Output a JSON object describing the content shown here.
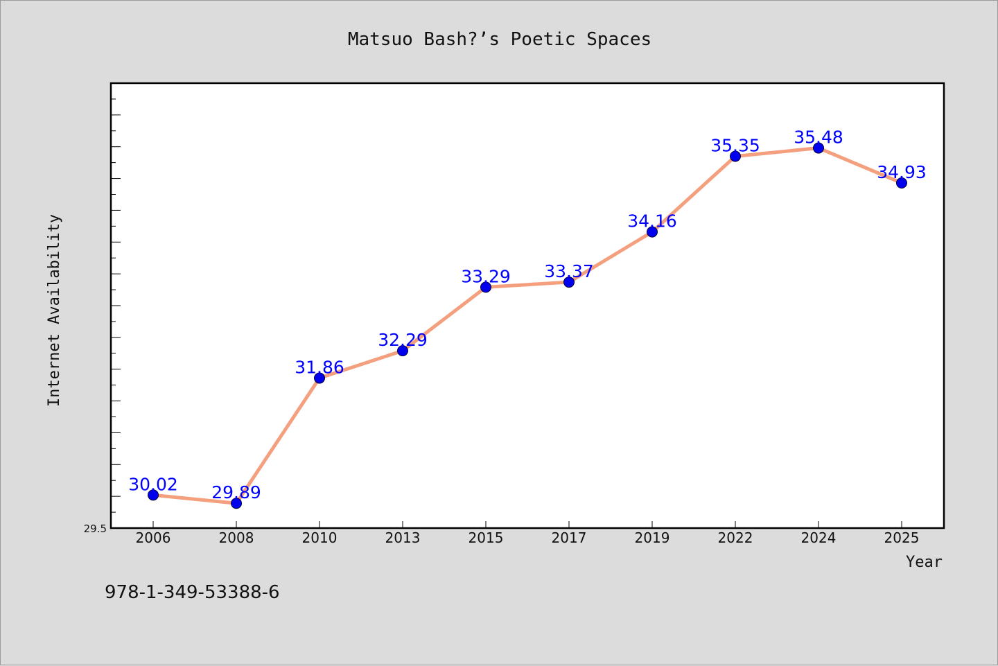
{
  "chart_data": {
    "type": "line",
    "title": "Matsuo Bash?’s Poetic Spaces",
    "xlabel": "Year",
    "ylabel": "Internet Availability",
    "categories": [
      "2006",
      "2008",
      "2010",
      "2013",
      "2015",
      "2017",
      "2019",
      "2022",
      "2024",
      "2025"
    ],
    "series": [
      {
        "values": [
          30.02,
          29.89,
          31.86,
          32.29,
          33.29,
          33.37,
          34.16,
          35.35,
          35.48,
          34.93
        ],
        "labels": [
          "30.02",
          "29.89",
          "31.86",
          "32.29",
          "33.29",
          "33.37",
          "34.16",
          "35.35",
          "35.48",
          "34.93"
        ]
      }
    ],
    "ylim": [
      29.5,
      36.5
    ],
    "y_tick_labels": [
      "29.5"
    ],
    "grid": false,
    "colors": {
      "line": "#f4a07e",
      "marker": "#0000ee",
      "data_label": "#0000ff"
    }
  },
  "footer": {
    "isbn": "978-1-349-53388-6"
  }
}
